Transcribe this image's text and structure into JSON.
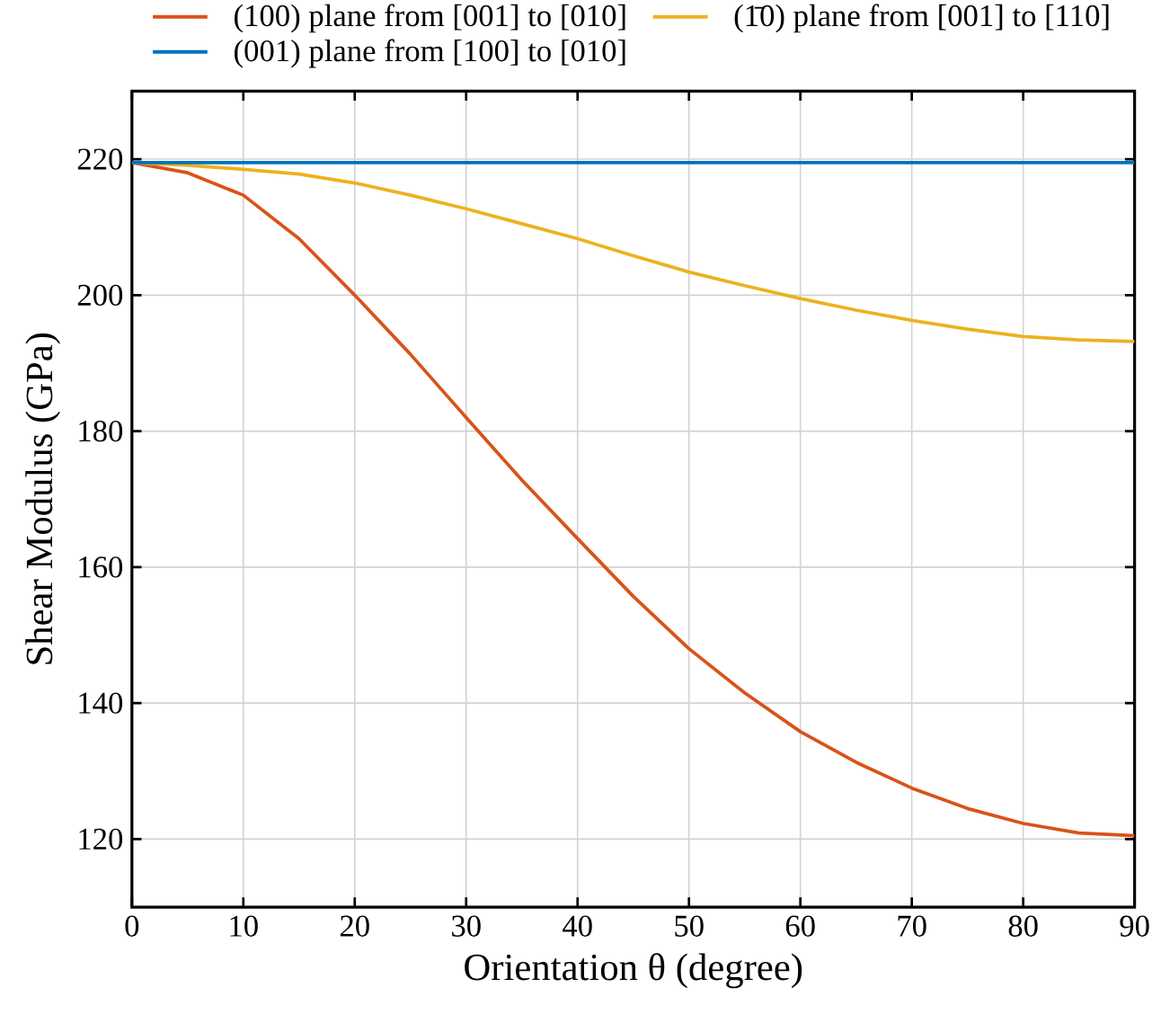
{
  "chart_data": {
    "type": "line",
    "xlabel": "Orientation θ (degree)",
    "ylabel": "Shear Modulus (GPa)",
    "x": [
      0,
      5,
      10,
      15,
      20,
      25,
      30,
      35,
      40,
      45,
      50,
      55,
      60,
      65,
      70,
      75,
      80,
      85,
      90
    ],
    "series": [
      {
        "name": "(100) plane from [001] to [010]",
        "color": "#d95319",
        "values": [
          219.5,
          218,
          214.7,
          208.3,
          200,
          191.3,
          182,
          172.8,
          164.2,
          155.7,
          148,
          141.5,
          135.8,
          131.3,
          127.5,
          124.5,
          122.3,
          120.9,
          120.5
        ]
      },
      {
        "name": "(1̄0) plane from [001] to [110]",
        "color": "#edb120",
        "values": [
          219.5,
          219.1,
          218.5,
          217.8,
          216.5,
          214.7,
          212.7,
          210.5,
          208.3,
          205.8,
          203.4,
          201.4,
          199.5,
          197.8,
          196.3,
          195,
          193.9,
          193.4,
          193.2
        ]
      },
      {
        "name": "(001) plane from [100] to [010]",
        "color": "#0072bd",
        "values": [
          219.5,
          219.5,
          219.5,
          219.5,
          219.5,
          219.5,
          219.5,
          219.5,
          219.5,
          219.5,
          219.5,
          219.5,
          219.5,
          219.5,
          219.5,
          219.5,
          219.5,
          219.5,
          219.5
        ]
      }
    ],
    "xlim": [
      0,
      90
    ],
    "ylim": [
      110,
      230
    ],
    "xticks": [
      0,
      10,
      20,
      30,
      40,
      50,
      60,
      70,
      80,
      90
    ],
    "yticks": [
      120,
      140,
      160,
      180,
      200,
      220
    ],
    "grid": true,
    "legend": "top",
    "marker": "none",
    "line_style": "solid"
  }
}
